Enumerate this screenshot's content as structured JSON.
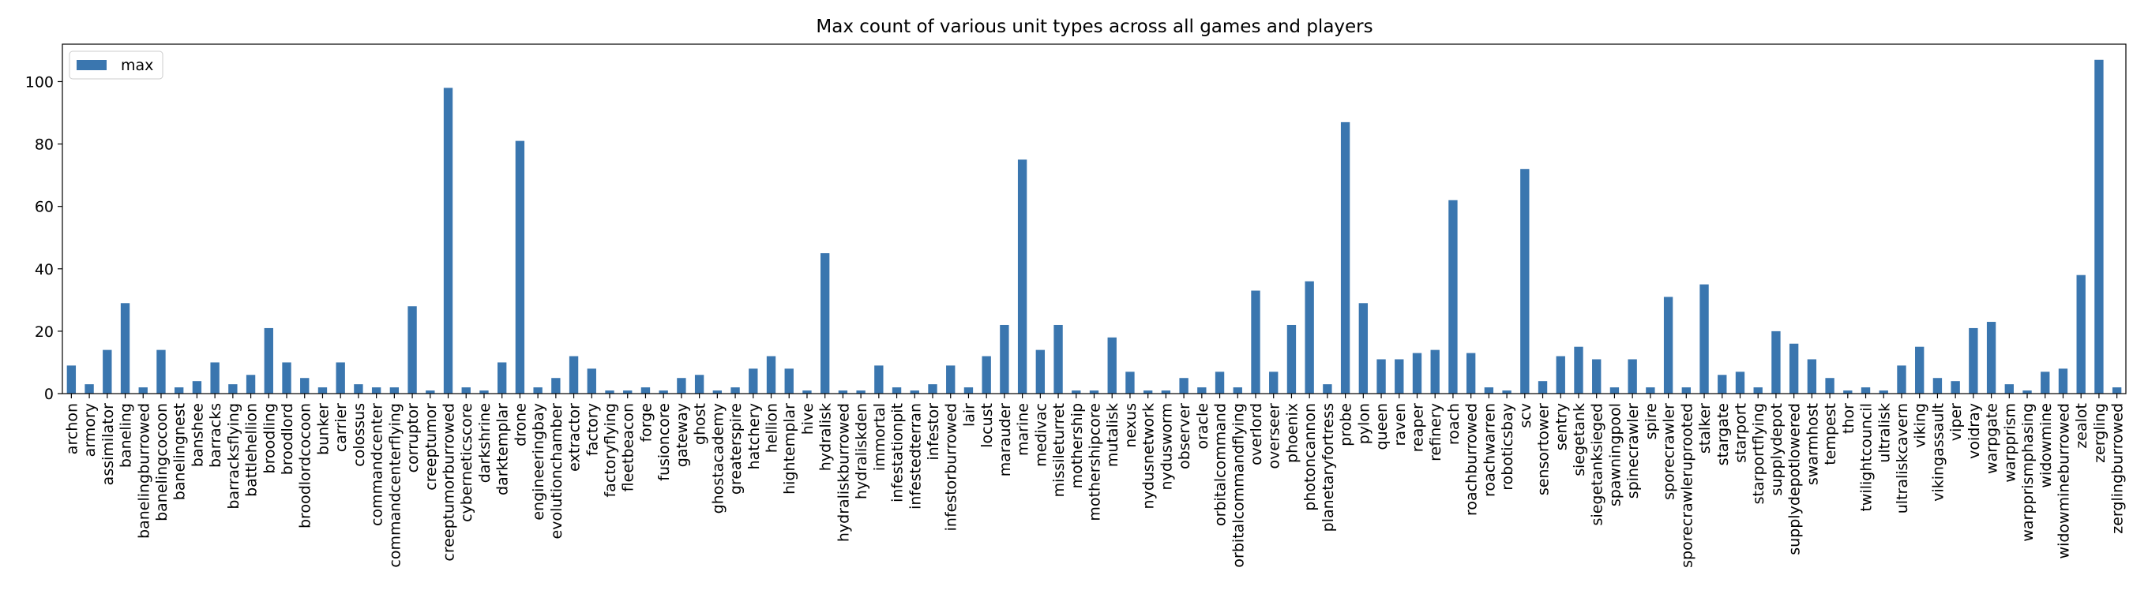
{
  "chart_data": {
    "type": "bar",
    "title": "Max count of various unit types across all games and players",
    "xlabel": "",
    "ylabel": "",
    "ylim": [
      0,
      112
    ],
    "yticks": [
      0,
      20,
      40,
      60,
      80,
      100
    ],
    "legend": {
      "position": "top-left"
    },
    "grid": false,
    "colors": {
      "bar": "#3a76af"
    },
    "categories": [
      "archon",
      "armory",
      "assimilator",
      "baneling",
      "banelingburrowed",
      "banelingcocoon",
      "banelingnest",
      "banshee",
      "barracks",
      "barracksflying",
      "battlehellion",
      "broodling",
      "broodlord",
      "broodlordcocoon",
      "bunker",
      "carrier",
      "colossus",
      "commandcenter",
      "commandcenterflying",
      "corruptor",
      "creeptumor",
      "creeptumorburrowed",
      "cyberneticscore",
      "darkshrine",
      "darktemplar",
      "drone",
      "engineeringbay",
      "evolutionchamber",
      "extractor",
      "factory",
      "factoryflying",
      "fleetbeacon",
      "forge",
      "fusioncore",
      "gateway",
      "ghost",
      "ghostacademy",
      "greaterspire",
      "hatchery",
      "hellion",
      "hightemplar",
      "hive",
      "hydralisk",
      "hydraliskburrowed",
      "hydraliskden",
      "immortal",
      "infestationpit",
      "infestedterran",
      "infestor",
      "infestorburrowed",
      "lair",
      "locust",
      "marauder",
      "marine",
      "medivac",
      "missileturret",
      "mothership",
      "mothershipcore",
      "mutalisk",
      "nexus",
      "nydusnetwork",
      "nydusworm",
      "observer",
      "oracle",
      "orbitalcommand",
      "orbitalcommandflying",
      "overlord",
      "overseer",
      "phoenix",
      "photoncannon",
      "planetaryfortress",
      "probe",
      "pylon",
      "queen",
      "raven",
      "reaper",
      "refinery",
      "roach",
      "roachburrowed",
      "roachwarren",
      "roboticsbay",
      "scv",
      "sensortower",
      "sentry",
      "siegetank",
      "siegetanksieged",
      "spawningpool",
      "spinecrawler",
      "spire",
      "sporecrawler",
      "sporecrawleruprooted",
      "stalker",
      "stargate",
      "starport",
      "starportflying",
      "supplydepot",
      "supplydepotlowered",
      "swarmhost",
      "tempest",
      "thor",
      "twilightcouncil",
      "ultralisk",
      "ultraliskcavern",
      "viking",
      "vikingassault",
      "viper",
      "voidray",
      "warpgate",
      "warpprism",
      "warpprismphasing",
      "widowmine",
      "widowmineburrowed",
      "zealot",
      "zergling",
      "zerglingburrowed"
    ],
    "series": [
      {
        "name": "max",
        "values": [
          9,
          3,
          14,
          29,
          2,
          14,
          2,
          4,
          10,
          3,
          6,
          21,
          10,
          5,
          2,
          10,
          3,
          2,
          2,
          28,
          1,
          98,
          2,
          1,
          10,
          81,
          2,
          5,
          12,
          8,
          1,
          1,
          2,
          1,
          5,
          6,
          1,
          2,
          8,
          12,
          8,
          1,
          45,
          1,
          1,
          9,
          2,
          1,
          3,
          9,
          2,
          12,
          22,
          75,
          14,
          22,
          1,
          1,
          18,
          7,
          1,
          1,
          5,
          2,
          7,
          2,
          33,
          7,
          22,
          36,
          3,
          87,
          29,
          11,
          11,
          13,
          14,
          62,
          13,
          2,
          1,
          72,
          4,
          12,
          15,
          11,
          2,
          11,
          2,
          31,
          2,
          35,
          6,
          7,
          2,
          20,
          16,
          11,
          5,
          1,
          2,
          1,
          9,
          15,
          5,
          4,
          21,
          23,
          3,
          1,
          7,
          8,
          38,
          107,
          2
        ]
      }
    ]
  }
}
